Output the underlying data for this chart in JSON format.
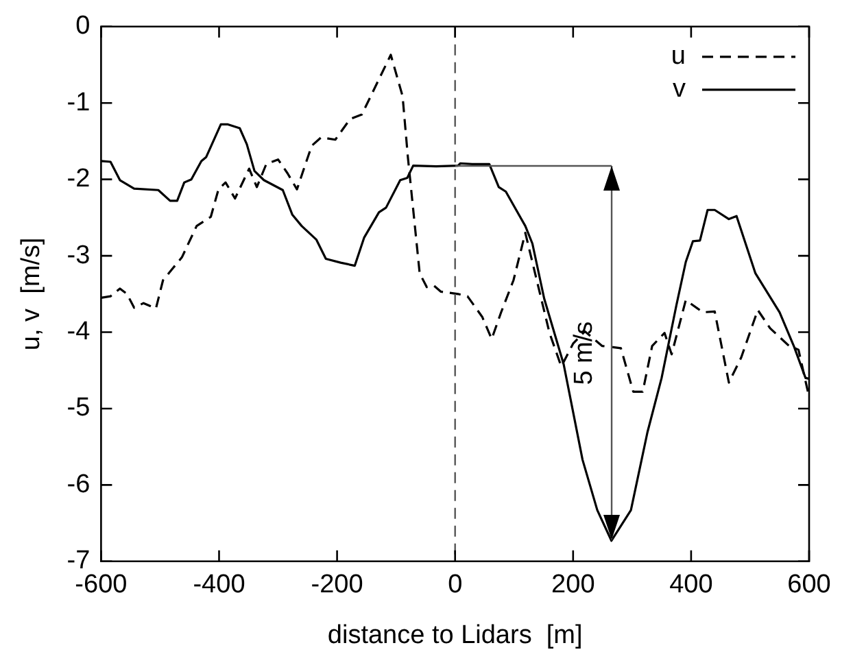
{
  "chart_data": {
    "type": "line",
    "xlabel": "distance to Lidars  [m]",
    "ylabel": "u, v  [m/s]",
    "xlim": [
      -600,
      600
    ],
    "xticks": [
      -600,
      -400,
      -200,
      0,
      200,
      400,
      600
    ],
    "ylim": [
      -7,
      0
    ],
    "yticks": [
      -7,
      -6,
      -5,
      -4,
      -3,
      -2,
      -1,
      0
    ],
    "grid": false,
    "legend": "top right",
    "marker": "none",
    "ref_lines": [
      {
        "axis": "x",
        "value": 0,
        "color": "#555555",
        "line_style": "dashed"
      }
    ],
    "annotations": [
      "5 m/s"
    ],
    "series": [
      {
        "name": "u",
        "color": "#000000",
        "line_style": "dashed",
        "x": [
          -600,
          -584,
          -568,
          -556,
          -544,
          -528,
          -507,
          -495,
          -463,
          -438,
          -414,
          -401,
          -389,
          -373,
          -349,
          -336,
          -320,
          -300,
          -284,
          -268,
          -243,
          -227,
          -203,
          -178,
          -158,
          -109,
          -89,
          -80,
          -60,
          -48,
          -36,
          -24,
          5,
          21,
          46,
          62,
          78,
          99,
          119,
          160,
          180,
          200,
          220,
          249,
          281,
          302,
          318,
          334,
          355,
          367,
          391,
          420,
          440,
          464,
          485,
          513,
          534,
          566,
          582,
          600
        ],
        "values": [
          -3.55,
          -3.53,
          -3.43,
          -3.5,
          -3.68,
          -3.62,
          -3.69,
          -3.32,
          -3.02,
          -2.61,
          -2.49,
          -2.13,
          -2.04,
          -2.25,
          -1.86,
          -2.1,
          -1.8,
          -1.74,
          -1.92,
          -2.13,
          -1.56,
          -1.45,
          -1.48,
          -1.21,
          -1.15,
          -0.37,
          -0.91,
          -1.71,
          -3.23,
          -3.41,
          -3.39,
          -3.47,
          -3.5,
          -3.53,
          -3.8,
          -4.09,
          -3.74,
          -3.32,
          -2.7,
          -4.01,
          -4.45,
          -4.15,
          -3.99,
          -4.18,
          -4.21,
          -4.78,
          -4.78,
          -4.18,
          -4.01,
          -4.29,
          -3.58,
          -3.74,
          -3.73,
          -4.66,
          -4.33,
          -3.71,
          -3.95,
          -4.18,
          -4.23,
          -4.85
        ]
      },
      {
        "name": "v",
        "color": "#000000",
        "line_style": "solid",
        "x": [
          -600,
          -584,
          -568,
          -544,
          -503,
          -483,
          -471,
          -459,
          -447,
          -430,
          -422,
          -397,
          -385,
          -365,
          -353,
          -340,
          -324,
          -292,
          -276,
          -260,
          -235,
          -219,
          -194,
          -170,
          -154,
          -129,
          -117,
          -93,
          -81,
          -71,
          -32,
          5,
          9,
          29,
          58,
          74,
          86,
          119,
          131,
          151,
          184,
          216,
          241,
          265,
          298,
          326,
          350,
          375,
          391,
          403,
          415,
          428,
          440,
          464,
          477,
          509,
          550,
          574,
          594,
          600
        ],
        "values": [
          -1.76,
          -1.77,
          -2.01,
          -2.12,
          -2.14,
          -2.28,
          -2.28,
          -2.04,
          -2.0,
          -1.76,
          -1.71,
          -1.28,
          -1.28,
          -1.33,
          -1.54,
          -1.89,
          -2.01,
          -2.14,
          -2.46,
          -2.61,
          -2.79,
          -3.04,
          -3.09,
          -3.13,
          -2.76,
          -2.43,
          -2.37,
          -2.01,
          -1.98,
          -1.82,
          -1.83,
          -1.82,
          -1.79,
          -1.8,
          -1.8,
          -2.1,
          -2.16,
          -2.61,
          -2.84,
          -3.56,
          -4.42,
          -5.67,
          -6.33,
          -6.73,
          -6.33,
          -5.31,
          -4.6,
          -3.65,
          -3.08,
          -2.81,
          -2.8,
          -2.4,
          -2.4,
          -2.52,
          -2.48,
          -3.23,
          -3.74,
          -4.18,
          -4.6,
          -4.61
        ]
      }
    ]
  }
}
